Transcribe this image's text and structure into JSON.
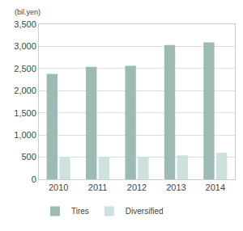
{
  "chart_data": {
    "type": "bar",
    "y_label": "(bil.yen)",
    "categories": [
      "2010",
      "2011",
      "2012",
      "2013",
      "2014"
    ],
    "series": [
      {
        "name": "Tires",
        "color": "#9dbab5",
        "values": [
          2380,
          2540,
          2560,
          3030,
          3090
        ]
      },
      {
        "name": "Diversified",
        "color": "#cce2de",
        "values": [
          500,
          510,
          500,
          540,
          600
        ]
      }
    ],
    "ylim": [
      0,
      3500
    ],
    "yticks": [
      0,
      500,
      {
        "value": 1000,
        "label": "1,000"
      },
      {
        "value": 1500,
        "label": "1,500"
      },
      {
        "value": 2000,
        "label": "2,000"
      },
      {
        "value": 2500,
        "label": "2,500"
      },
      {
        "value": 3000,
        "label": "3,000"
      },
      {
        "value": 3500,
        "label": "3,500"
      }
    ],
    "grid": true,
    "legend": "bottom"
  }
}
